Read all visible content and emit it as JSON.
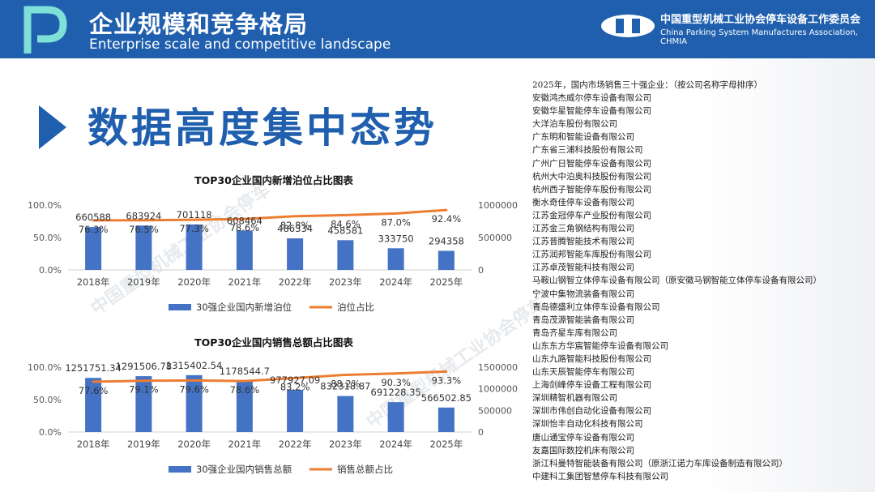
{
  "header": {
    "title_cn": "企业规模和竞争格局",
    "title_en": "Enterprise scale and competitive landscape",
    "org_cn": "中国重型机械工业协会停车设备工作委员会",
    "org_en": "China Parking System Manufactures Association, CHMIA"
  },
  "section_title": "数据高度集中态势",
  "colors": {
    "header": "#1f5fae",
    "bar": "#4472c4",
    "line": "#ed7d31"
  },
  "chart_data": [
    {
      "type": "bar",
      "title": "TOP30企业国内新增泊位占比图表",
      "categories": [
        "2018年",
        "2019年",
        "2020年",
        "2021年",
        "2022年",
        "2023年",
        "2024年",
        "2025年"
      ],
      "series": [
        {
          "name": "30强企业国内新增泊位",
          "kind": "bar",
          "axis": "right",
          "values": [
            660588,
            683924,
            701118,
            608464,
            486334,
            458581,
            333750,
            294358
          ],
          "labels": [
            "660588",
            "683924",
            "701118",
            "608464",
            "486334",
            "458581",
            "333750",
            "294358"
          ]
        },
        {
          "name": "泊位占比",
          "kind": "line",
          "axis": "left",
          "values": [
            76.3,
            76.5,
            77.3,
            78.6,
            82.8,
            84.6,
            87.0,
            92.4
          ],
          "labels": [
            "76.3%",
            "76.5%",
            "77.3%",
            "78.6%",
            "82.8%",
            "84.6%",
            "87.0%",
            "92.4%"
          ]
        }
      ],
      "left_axis": {
        "ticks": [
          "0.0%",
          "50.0%",
          "100.0%"
        ],
        "range": [
          0,
          100
        ]
      },
      "right_axis": {
        "ticks": [
          "0",
          "500000",
          "1000000"
        ],
        "range": [
          0,
          1000000
        ]
      },
      "legend_position": "bottom"
    },
    {
      "type": "bar",
      "title": "TOP30企业国内销售总额占比图表",
      "categories": [
        "2018年",
        "2019年",
        "2020年",
        "2021年",
        "2022年",
        "2023年",
        "2024年",
        "2025年"
      ],
      "series": [
        {
          "name": "30强企业国内销售总额",
          "kind": "bar",
          "axis": "right",
          "values": [
            1251751.34,
            1291506.78,
            1315402.54,
            1178544.7,
            977927.09,
            832318.87,
            691228.35,
            566502.85
          ],
          "labels": [
            "1251751.34",
            "1291506.78",
            "1315402.54",
            "1178544.7",
            "977927.09",
            "832318.87",
            "691228.35",
            "566502.85"
          ]
        },
        {
          "name": "销售总额占比",
          "kind": "line",
          "axis": "left",
          "values": [
            77.6,
            79.1,
            79.6,
            78.6,
            83.2,
            88.2,
            90.3,
            93.3
          ],
          "labels": [
            "77.6%",
            "79.1%",
            "79.6%",
            "78.6%",
            "83.2%",
            "88.2%",
            "90.3%",
            "93.3%"
          ]
        }
      ],
      "left_axis": {
        "ticks": [
          "0.0%",
          "50.0%",
          "100.0%"
        ],
        "range": [
          0,
          100
        ]
      },
      "right_axis": {
        "ticks": [
          "0",
          "500000",
          "1000000",
          "1500000"
        ],
        "range": [
          0,
          1500000
        ]
      },
      "legend_position": "bottom"
    }
  ],
  "company_list": {
    "heading": "2025年，国内市场销售三十强企业：（按公司名称字母排序）",
    "items": [
      "安徽鸿杰威尔停车设备有限公司",
      "安徽华星智能停车设备有限公司",
      "大洋泊车股份有限公司",
      "广东明和智能设备有限公司",
      "广东省三浦科技股份有限公司",
      "广州广日智能停车设备有限公司",
      "杭州大中泊奥科技股份有限公司",
      "杭州西子智能停车股份有限公司",
      "衡水奇佳停车设备有限公司",
      "江苏金冠停车产业股份有限公司",
      "江苏金三角钢结构有限公司",
      "江苏普腾智能技术有限公司",
      "江苏润邦智能车库股份有限公司",
      "江苏卓茂智能科技有限公司",
      "马鞍山钢智立体停车设备有限公司（原安徽马钢智能立体停车设备有限公司）",
      "宁波中集物流装备有限公司",
      "青岛德盛利立体停车设备有限公司",
      "青岛茂源智能装备有限公司",
      "青岛齐星车库有限公司",
      "山东东方华宸智能停车设备有限公司",
      "山东九路智能科技股份有限公司",
      "山东天辰智能停车有限公司",
      "上海剑峰停车设备工程有限公司",
      "深圳精智机器有限公司",
      "深圳市伟创自动化设备有限公司",
      "深圳怡丰自动化科技有限公司",
      "唐山通宝停车设备有限公司",
      "友嘉国际数控机床有限公司",
      "浙江科曼特智能装备有限公司（原浙江诺力车库设备制造有限公司）",
      "中建科工集团智慧停车科技有限公司"
    ]
  }
}
